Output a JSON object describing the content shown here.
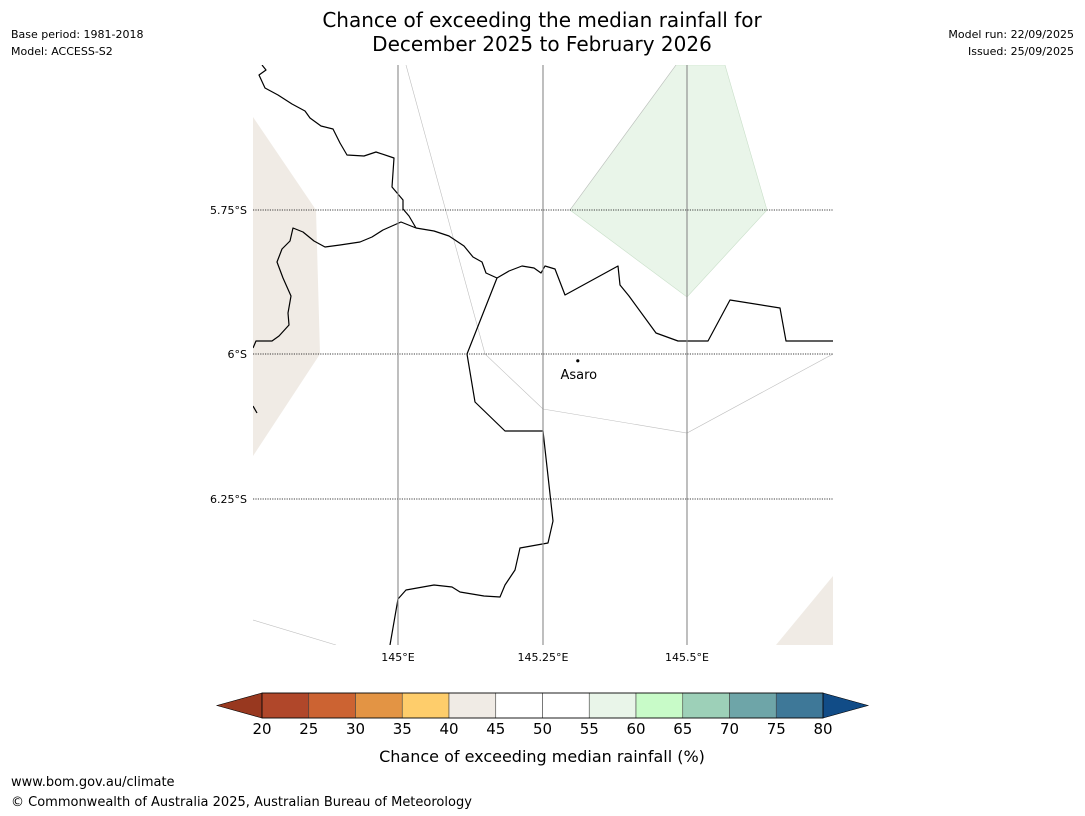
{
  "header": {
    "title_line1": "Chance of exceeding the median rainfall for",
    "title_line2": "December 2025 to February 2026",
    "base_period": "Base period: 1981-2018",
    "model": "Model: ACCESS-S2",
    "model_run": "Model run: 22/09/2025",
    "issued": "Issued: 25/09/2025"
  },
  "map": {
    "lat_labels": [
      "5.75°S",
      "6°S",
      "6.25°S"
    ],
    "lon_labels": [
      "145°E",
      "145.25°E",
      "145.5°E"
    ],
    "place": {
      "name": "Asaro",
      "lat": -6.01,
      "lon": 145.31
    },
    "extent": {
      "lon_min": 144.75,
      "lon_max": 145.75,
      "lat_min": -6.5,
      "lat_max": -5.5
    },
    "colors": {
      "below_median_40_45": "#f0ebe5",
      "above_median_55_60": "#e9f5e9"
    }
  },
  "colorbar": {
    "ticks": [
      "20",
      "25",
      "30",
      "35",
      "40",
      "45",
      "50",
      "55",
      "60",
      "65",
      "70",
      "75",
      "80"
    ],
    "colors": [
      "#b0472a",
      "#cc6332",
      "#e39444",
      "#fecd6b",
      "#f0ebe5",
      "#ffffff",
      "#ffffff",
      "#e9f5e9",
      "#c8fbc8",
      "#9dd0b8",
      "#6ea5a8",
      "#3e7898"
    ],
    "under_color": "#98381f",
    "over_color": "#114c87",
    "label": "Chance of exceeding median rainfall (%)"
  },
  "footer": {
    "url": "www.bom.gov.au/climate",
    "copyright": "© Commonwealth of Australia 2025, Australian Bureau of Meteorology"
  }
}
